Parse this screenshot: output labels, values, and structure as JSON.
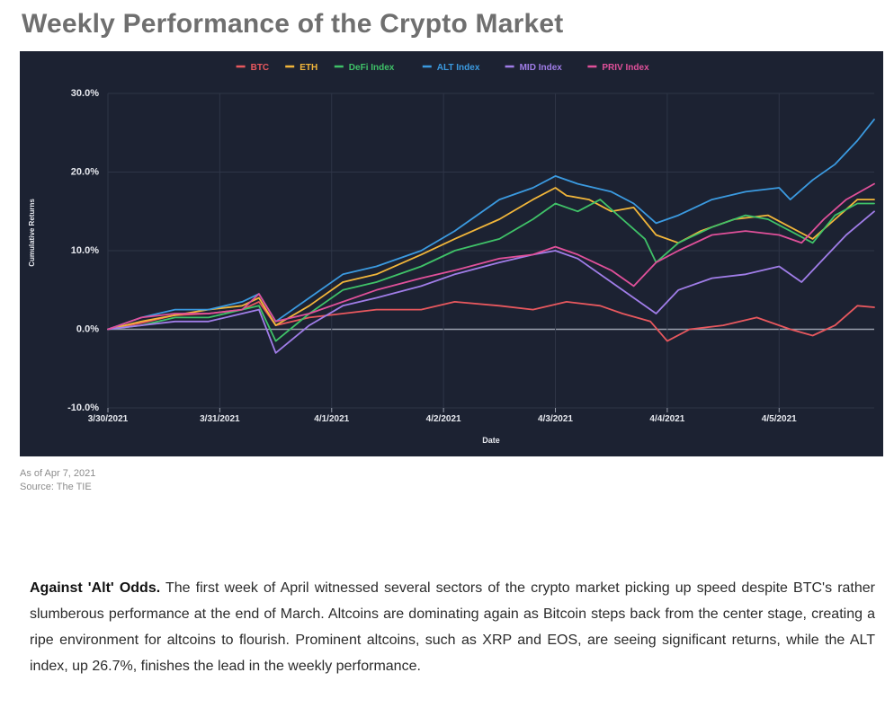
{
  "title": "Weekly Performance of the Crypto Market",
  "meta": {
    "as_of": "As of Apr 7, 2021",
    "source": "Source: The TIE"
  },
  "article": {
    "lead": "Against 'Alt' Odds.",
    "text": " The first week of April witnessed several sectors of the crypto market picking up speed despite BTC's rather slumberous performance at the end of March. Altcoins are dominating again as Bitcoin steps back from the center stage, creating a ripe environment for altcoins to flourish. Prominent altcoins, such as XRP and EOS, are seeing significant returns, while the ALT index, up 26.7%, finishes the lead in the weekly performance."
  },
  "chart_data": {
    "type": "line",
    "title": "",
    "xlabel": "Date",
    "ylabel": "Cumulative Returns",
    "ylim": [
      -10,
      30
    ],
    "xlim": [
      0,
      6.85
    ],
    "yticks": [
      -10,
      0,
      10,
      20,
      30
    ],
    "ytick_labels": [
      "-10.0%",
      "0.0%",
      "10.0%",
      "20.0%",
      "30.0%"
    ],
    "xtick_labels": [
      "3/30/2021",
      "3/31/2021",
      "4/1/2021",
      "4/2/2021",
      "4/3/2021",
      "4/4/2021",
      "4/5/2021"
    ],
    "grid": true,
    "legend": "top-center",
    "background": "#1c2232",
    "series": [
      {
        "name": "BTC",
        "color": "#e8585e",
        "x": [
          0,
          0.3,
          0.6,
          0.9,
          1.2,
          1.35,
          1.5,
          1.8,
          2.1,
          2.4,
          2.8,
          3.1,
          3.5,
          3.8,
          4.1,
          4.4,
          4.6,
          4.85,
          5.0,
          5.2,
          5.5,
          5.8,
          6.1,
          6.3,
          6.5,
          6.7,
          6.85
        ],
        "y": [
          0,
          0.8,
          1.8,
          2.0,
          2.5,
          3.5,
          0.5,
          1.5,
          2.0,
          2.5,
          2.5,
          3.5,
          3.0,
          2.5,
          3.5,
          3.0,
          2.0,
          1.0,
          -1.5,
          0.0,
          0.5,
          1.5,
          0.0,
          -0.8,
          0.5,
          3.0,
          2.8
        ]
      },
      {
        "name": "ETH",
        "color": "#f2b63a",
        "x": [
          0,
          0.3,
          0.6,
          0.9,
          1.2,
          1.35,
          1.5,
          1.8,
          2.1,
          2.4,
          2.8,
          3.1,
          3.5,
          3.8,
          4.0,
          4.1,
          4.3,
          4.5,
          4.7,
          4.9,
          5.1,
          5.3,
          5.6,
          5.9,
          6.1,
          6.3,
          6.5,
          6.7,
          6.85
        ],
        "y": [
          0,
          1.0,
          1.8,
          2.5,
          3.0,
          4.0,
          0.5,
          3.0,
          6.0,
          7.0,
          9.5,
          11.5,
          14.0,
          16.5,
          18.0,
          17.0,
          16.5,
          15.0,
          15.5,
          12.0,
          11.0,
          12.5,
          14.0,
          14.5,
          13.0,
          11.5,
          14.0,
          16.5,
          16.5
        ]
      },
      {
        "name": "DeFi Index",
        "color": "#3fc268",
        "x": [
          0,
          0.3,
          0.6,
          0.9,
          1.2,
          1.35,
          1.5,
          1.8,
          2.1,
          2.4,
          2.8,
          3.1,
          3.5,
          3.8,
          4.0,
          4.2,
          4.4,
          4.6,
          4.8,
          4.9,
          5.1,
          5.4,
          5.7,
          5.9,
          6.1,
          6.3,
          6.5,
          6.7,
          6.85
        ],
        "y": [
          0,
          0.5,
          1.5,
          1.5,
          2.5,
          3.0,
          -1.5,
          2.0,
          5.0,
          6.0,
          8.0,
          10.0,
          11.5,
          14.0,
          16.0,
          15.0,
          16.5,
          14.0,
          11.5,
          8.5,
          11.0,
          13.0,
          14.5,
          14.0,
          12.5,
          11.0,
          14.5,
          16.0,
          16.0
        ]
      },
      {
        "name": "ALT Index",
        "color": "#3b9ae0",
        "x": [
          0,
          0.3,
          0.6,
          0.9,
          1.2,
          1.35,
          1.5,
          1.8,
          2.1,
          2.4,
          2.8,
          3.1,
          3.5,
          3.8,
          4.0,
          4.2,
          4.5,
          4.7,
          4.9,
          5.1,
          5.4,
          5.7,
          6.0,
          6.1,
          6.3,
          6.5,
          6.7,
          6.85
        ],
        "y": [
          0,
          1.5,
          2.5,
          2.5,
          3.5,
          4.5,
          1.0,
          4.0,
          7.0,
          8.0,
          10.0,
          12.5,
          16.5,
          18.0,
          19.5,
          18.5,
          17.5,
          16.0,
          13.5,
          14.5,
          16.5,
          17.5,
          18.0,
          16.5,
          19.0,
          21.0,
          24.0,
          26.7
        ]
      },
      {
        "name": "MID Index",
        "color": "#a07de8",
        "x": [
          0,
          0.3,
          0.6,
          0.9,
          1.2,
          1.35,
          1.5,
          1.8,
          2.1,
          2.4,
          2.8,
          3.1,
          3.5,
          3.8,
          4.0,
          4.2,
          4.5,
          4.7,
          4.9,
          5.1,
          5.4,
          5.7,
          6.0,
          6.2,
          6.4,
          6.6,
          6.85
        ],
        "y": [
          0,
          0.5,
          1.0,
          1.0,
          2.0,
          2.5,
          -3.0,
          0.5,
          3.0,
          4.0,
          5.5,
          7.0,
          8.5,
          9.5,
          10.0,
          9.0,
          6.0,
          4.0,
          2.0,
          5.0,
          6.5,
          7.0,
          8.0,
          6.0,
          9.0,
          12.0,
          15.0
        ]
      },
      {
        "name": "PRIV Index",
        "color": "#e0509a",
        "x": [
          0,
          0.3,
          0.6,
          0.9,
          1.2,
          1.35,
          1.5,
          1.8,
          2.1,
          2.4,
          2.8,
          3.1,
          3.5,
          3.8,
          4.0,
          4.2,
          4.5,
          4.7,
          4.9,
          5.1,
          5.4,
          5.7,
          6.0,
          6.2,
          6.4,
          6.6,
          6.85
        ],
        "y": [
          0,
          1.5,
          2.0,
          2.0,
          2.5,
          4.5,
          1.0,
          2.0,
          3.5,
          5.0,
          6.5,
          7.5,
          9.0,
          9.5,
          10.5,
          9.5,
          7.5,
          5.5,
          8.5,
          10.0,
          12.0,
          12.5,
          12.0,
          11.0,
          14.0,
          16.5,
          18.5
        ]
      }
    ]
  }
}
